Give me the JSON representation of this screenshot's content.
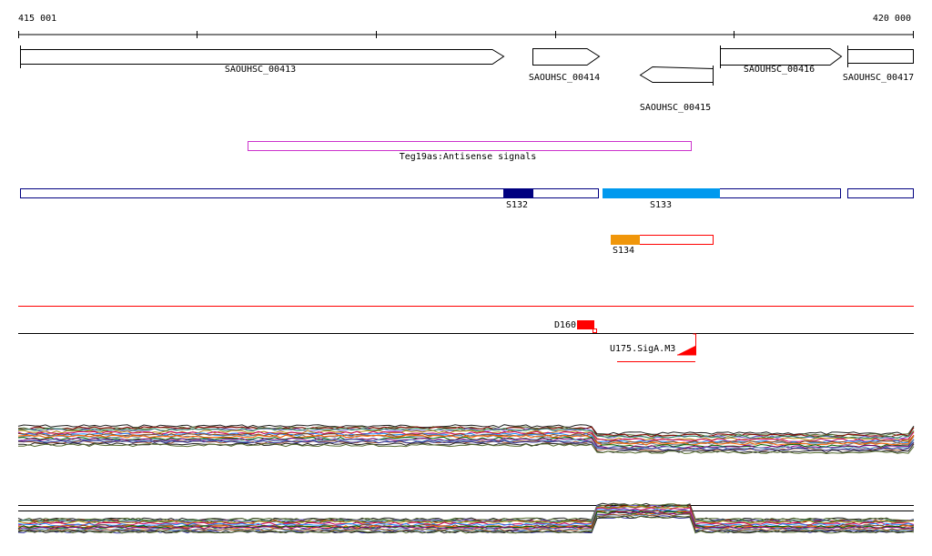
{
  "ruler": {
    "start_label": "415 001",
    "end_label": "420 000"
  },
  "genes": [
    {
      "label": "SAOUHSC_00413",
      "strand": "+"
    },
    {
      "label": "SAOUHSC_00414",
      "strand": "+"
    },
    {
      "label": "SAOUHSC_00415",
      "strand": "-"
    },
    {
      "label": "SAOUHSC_00416",
      "strand": "+"
    },
    {
      "label": "SAOUHSC_00417",
      "strand": "+"
    }
  ],
  "antisense": {
    "label": "Teg19as:Antisense signals",
    "color": "#cc33cc"
  },
  "segments": [
    {
      "label": "S132",
      "color": "#000080"
    },
    {
      "label": "S133",
      "color": "#0099ee"
    },
    {
      "label": "S134",
      "color": "#f0960a"
    }
  ],
  "track_colors": {
    "segment_outline": "#000080",
    "s134_outline": "#ff0000",
    "red_line": "#ff0000"
  },
  "features": {
    "d160": {
      "label": "D160",
      "color": "#ff0000"
    },
    "u175": {
      "label": "U175.SigA.M3",
      "color": "#ff0000"
    }
  }
}
